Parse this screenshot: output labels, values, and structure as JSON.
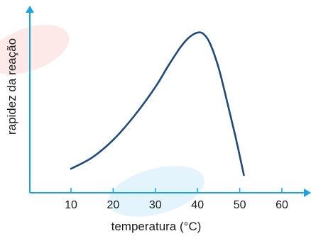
{
  "chart_data": {
    "type": "line",
    "title": "",
    "xlabel": "temperatura (°C)",
    "ylabel": "rapidez da reação",
    "x_ticks": [
      "10",
      "20",
      "30",
      "40",
      "50",
      "60"
    ],
    "xlim": [
      0,
      65
    ],
    "y_ticks": [],
    "y_axis_labeled": false,
    "grid": false,
    "legend": "none",
    "series": [
      {
        "x": [
          10,
          15,
          20,
          25,
          30,
          33,
          36,
          38,
          40,
          41.5,
          43,
          45,
          47,
          49,
          51
        ],
        "y": [
          0.15,
          0.22,
          0.33,
          0.48,
          0.66,
          0.79,
          0.91,
          0.97,
          1.0,
          0.99,
          0.93,
          0.78,
          0.57,
          0.35,
          0.11
        ]
      }
    ],
    "line_color": "#1f4a7a",
    "axis_color": "#1aa3e8"
  }
}
